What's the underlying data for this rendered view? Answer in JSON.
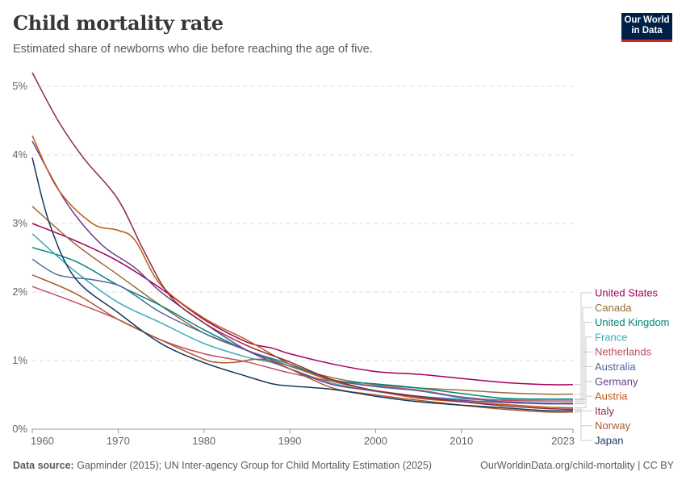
{
  "header": {
    "title": "Child mortality rate",
    "subtitle": "Estimated share of newborns who die before reaching the age of five."
  },
  "logo": {
    "line1": "Our World",
    "line2": "in Data"
  },
  "footer": {
    "source_label": "Data source:",
    "source_text": " Gapminder (2015); UN Inter-agency Group for Child Mortality Estimation (2025)",
    "url": "OurWorldinData.org/child-mortality | CC BY"
  },
  "chart_data": {
    "type": "line",
    "title": "Child mortality rate",
    "subtitle": "Estimated share of newborns who die before reaching the age of five.",
    "xlabel": "",
    "ylabel": "",
    "xlim": [
      1960,
      2023
    ],
    "ylim": [
      0,
      5
    ],
    "x_ticks": [
      "1960",
      "1970",
      "1980",
      "1990",
      "2000",
      "2010",
      "2023"
    ],
    "x_tick_values": [
      1960,
      1970,
      1980,
      1990,
      2000,
      2010,
      2023
    ],
    "y_ticks": [
      "0%",
      "1%",
      "2%",
      "3%",
      "4%",
      "5%"
    ],
    "y_tick_values": [
      0,
      1,
      2,
      3,
      4,
      5
    ],
    "grid": "horizontal dashed",
    "legend": "right (line-end labels)",
    "series": [
      {
        "name": "United States",
        "color": "#a2005c",
        "points": [
          [
            1960,
            3.0
          ],
          [
            1965,
            2.75
          ],
          [
            1970,
            2.45
          ],
          [
            1975,
            2.05
          ],
          [
            1980,
            1.6
          ],
          [
            1985,
            1.27
          ],
          [
            1988,
            1.18
          ],
          [
            1990,
            1.1
          ],
          [
            1995,
            0.95
          ],
          [
            2000,
            0.84
          ],
          [
            2005,
            0.8
          ],
          [
            2010,
            0.74
          ],
          [
            2015,
            0.68
          ],
          [
            2020,
            0.65
          ],
          [
            2023,
            0.65
          ]
        ]
      },
      {
        "name": "Canada",
        "color": "#9a6c3b",
        "points": [
          [
            1960,
            3.25
          ],
          [
            1965,
            2.7
          ],
          [
            1970,
            2.25
          ],
          [
            1975,
            1.8
          ],
          [
            1980,
            1.4
          ],
          [
            1985,
            1.15
          ],
          [
            1990,
            0.92
          ],
          [
            1995,
            0.75
          ],
          [
            2000,
            0.65
          ],
          [
            2005,
            0.6
          ],
          [
            2010,
            0.57
          ],
          [
            2015,
            0.53
          ],
          [
            2020,
            0.51
          ],
          [
            2023,
            0.51
          ]
        ]
      },
      {
        "name": "United Kingdom",
        "color": "#00847e",
        "points": [
          [
            1960,
            2.65
          ],
          [
            1965,
            2.45
          ],
          [
            1970,
            2.1
          ],
          [
            1975,
            1.8
          ],
          [
            1980,
            1.45
          ],
          [
            1985,
            1.15
          ],
          [
            1990,
            0.95
          ],
          [
            1995,
            0.72
          ],
          [
            2000,
            0.66
          ],
          [
            2005,
            0.6
          ],
          [
            2010,
            0.52
          ],
          [
            2015,
            0.45
          ],
          [
            2020,
            0.44
          ],
          [
            2023,
            0.44
          ]
        ]
      },
      {
        "name": "France",
        "color": "#38aaba",
        "points": [
          [
            1960,
            2.85
          ],
          [
            1965,
            2.3
          ],
          [
            1970,
            1.85
          ],
          [
            1975,
            1.55
          ],
          [
            1980,
            1.25
          ],
          [
            1985,
            1.05
          ],
          [
            1988,
            0.97
          ],
          [
            1990,
            0.88
          ],
          [
            1995,
            0.67
          ],
          [
            2000,
            0.55
          ],
          [
            2005,
            0.48
          ],
          [
            2010,
            0.44
          ],
          [
            2015,
            0.43
          ],
          [
            2020,
            0.43
          ],
          [
            2023,
            0.43
          ]
        ]
      },
      {
        "name": "Netherlands",
        "color": "#c15065",
        "points": [
          [
            1960,
            2.08
          ],
          [
            1965,
            1.85
          ],
          [
            1970,
            1.6
          ],
          [
            1975,
            1.3
          ],
          [
            1980,
            1.1
          ],
          [
            1985,
            0.98
          ],
          [
            1990,
            0.82
          ],
          [
            1995,
            0.7
          ],
          [
            2000,
            0.63
          ],
          [
            2005,
            0.57
          ],
          [
            2010,
            0.47
          ],
          [
            2015,
            0.42
          ],
          [
            2020,
            0.41
          ],
          [
            2023,
            0.41
          ]
        ]
      },
      {
        "name": "Australia",
        "color": "#4c6a9c",
        "points": [
          [
            1960,
            2.48
          ],
          [
            1963,
            2.25
          ],
          [
            1967,
            2.18
          ],
          [
            1970,
            2.1
          ],
          [
            1972,
            1.95
          ],
          [
            1975,
            1.7
          ],
          [
            1980,
            1.4
          ],
          [
            1985,
            1.15
          ],
          [
            1990,
            0.92
          ],
          [
            1995,
            0.72
          ],
          [
            2000,
            0.62
          ],
          [
            2005,
            0.56
          ],
          [
            2010,
            0.46
          ],
          [
            2015,
            0.4
          ],
          [
            2020,
            0.38
          ],
          [
            2023,
            0.38
          ]
        ]
      },
      {
        "name": "Germany",
        "color": "#6d3e91",
        "points": [
          [
            1960,
            4.2
          ],
          [
            1964,
            3.3
          ],
          [
            1968,
            2.7
          ],
          [
            1972,
            2.35
          ],
          [
            1975,
            2.0
          ],
          [
            1980,
            1.55
          ],
          [
            1985,
            1.15
          ],
          [
            1990,
            0.88
          ],
          [
            1995,
            0.65
          ],
          [
            2000,
            0.56
          ],
          [
            2005,
            0.48
          ],
          [
            2010,
            0.42
          ],
          [
            2015,
            0.39
          ],
          [
            2020,
            0.37
          ],
          [
            2023,
            0.37
          ]
        ]
      },
      {
        "name": "Austria",
        "color": "#c05917",
        "points": [
          [
            1960,
            4.28
          ],
          [
            1963,
            3.5
          ],
          [
            1967,
            3.0
          ],
          [
            1970,
            2.9
          ],
          [
            1972,
            2.75
          ],
          [
            1975,
            2.1
          ],
          [
            1980,
            1.62
          ],
          [
            1985,
            1.3
          ],
          [
            1990,
            0.95
          ],
          [
            1995,
            0.7
          ],
          [
            2000,
            0.56
          ],
          [
            2005,
            0.45
          ],
          [
            2010,
            0.4
          ],
          [
            2015,
            0.36
          ],
          [
            2020,
            0.32
          ],
          [
            2023,
            0.31
          ]
        ]
      },
      {
        "name": "Italy",
        "color": "#883039",
        "points": [
          [
            1960,
            5.2
          ],
          [
            1963,
            4.5
          ],
          [
            1966,
            3.95
          ],
          [
            1970,
            3.35
          ],
          [
            1973,
            2.6
          ],
          [
            1976,
            1.95
          ],
          [
            1980,
            1.55
          ],
          [
            1985,
            1.22
          ],
          [
            1990,
            0.98
          ],
          [
            1995,
            0.72
          ],
          [
            2000,
            0.56
          ],
          [
            2005,
            0.47
          ],
          [
            2010,
            0.4
          ],
          [
            2015,
            0.34
          ],
          [
            2020,
            0.3
          ],
          [
            2023,
            0.29
          ]
        ]
      },
      {
        "name": "Norway",
        "color": "#a85a2e",
        "points": [
          [
            1960,
            2.25
          ],
          [
            1965,
            1.98
          ],
          [
            1970,
            1.6
          ],
          [
            1975,
            1.3
          ],
          [
            1980,
            1.02
          ],
          [
            1982,
            0.97
          ],
          [
            1984,
            0.98
          ],
          [
            1986,
            1.02
          ],
          [
            1988,
            0.99
          ],
          [
            1990,
            0.88
          ],
          [
            1995,
            0.6
          ],
          [
            2000,
            0.5
          ],
          [
            2005,
            0.42
          ],
          [
            2010,
            0.35
          ],
          [
            2015,
            0.29
          ],
          [
            2020,
            0.25
          ],
          [
            2023,
            0.25
          ]
        ]
      },
      {
        "name": "Japan",
        "color": "#18375f",
        "points": [
          [
            1960,
            3.96
          ],
          [
            1962,
            3.0
          ],
          [
            1965,
            2.2
          ],
          [
            1970,
            1.7
          ],
          [
            1975,
            1.25
          ],
          [
            1980,
            0.97
          ],
          [
            1985,
            0.77
          ],
          [
            1988,
            0.66
          ],
          [
            1990,
            0.63
          ],
          [
            1995,
            0.58
          ],
          [
            2000,
            0.48
          ],
          [
            2005,
            0.4
          ],
          [
            2010,
            0.35
          ],
          [
            2015,
            0.31
          ],
          [
            2020,
            0.27
          ],
          [
            2023,
            0.27
          ]
        ]
      }
    ]
  }
}
